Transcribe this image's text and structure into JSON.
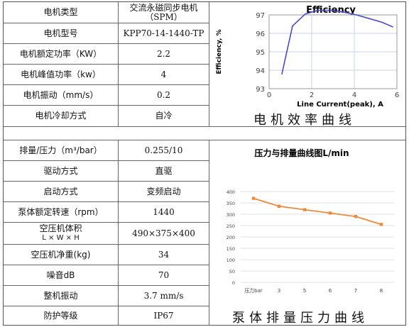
{
  "table1": {
    "rows": [
      {
        "label": "电机类型",
        "value": "交流永磁同步电机",
        "value2": "（SPM）"
      },
      {
        "label": "电机型号",
        "value": "KPP70-14-1440-TP"
      },
      {
        "label": "电机额定功率（KW）",
        "value": "2.2"
      },
      {
        "label": "电机峰值功率（kw）",
        "value": "4"
      },
      {
        "label": "电机振动（mm/s）",
        "value": "0.2"
      },
      {
        "label": "电机冷却方式",
        "value": "自冷"
      }
    ]
  },
  "table2": {
    "rows": [
      {
        "label": "排量/压力（m³/bar）",
        "value": "0.255/10"
      },
      {
        "label": "驱动方式",
        "value": "直驱"
      },
      {
        "label": "启动方式",
        "value": "变频启动"
      },
      {
        "label": "泵体额定转速（rpm）",
        "value": "1440"
      },
      {
        "label": "空压机体积",
        "label2": "L × W × H",
        "value": "490×375×400"
      },
      {
        "label": "空压机净重(kg)",
        "value": "34"
      },
      {
        "label": "噪音dB",
        "value": "70"
      },
      {
        "label": "整机振动",
        "value": "3.7 mm/s"
      },
      {
        "label": "防护等级",
        "value": "IP67"
      }
    ]
  },
  "caption1": "电机效率曲线",
  "caption2": "泵体排量压力曲线",
  "chart_data": [
    {
      "type": "line",
      "title": "Efficiency",
      "xlabel": "Line Current(peak), A",
      "ylabel": "Efficiency, %",
      "xlim": [
        0,
        6
      ],
      "ylim": [
        93,
        97
      ],
      "xticks": [
        "0",
        "2",
        "4",
        "6"
      ],
      "yticks": [
        "93",
        "94",
        "95",
        "96",
        "97"
      ],
      "grid": true,
      "color": "#4a4ad0",
      "x": [
        0.6,
        1.1,
        1.7,
        2.3,
        2.9,
        3.5,
        4.1,
        4.7,
        5.3,
        5.8
      ],
      "y": [
        93.8,
        96.4,
        97.05,
        97.25,
        97.25,
        97.15,
        97.0,
        96.8,
        96.6,
        96.35
      ]
    },
    {
      "type": "line",
      "title": "压力与排量曲线图L/min",
      "categories": [
        "压力bar",
        "3",
        "5",
        "6",
        "7",
        "8"
      ],
      "values": [
        370,
        335,
        320,
        305,
        290,
        255
      ],
      "ylim": [
        0,
        400
      ],
      "yticks": [
        "0",
        "50",
        "100",
        "150",
        "200",
        "250",
        "300",
        "350",
        "400"
      ],
      "grid": true,
      "color": "#ef8a3a"
    }
  ]
}
